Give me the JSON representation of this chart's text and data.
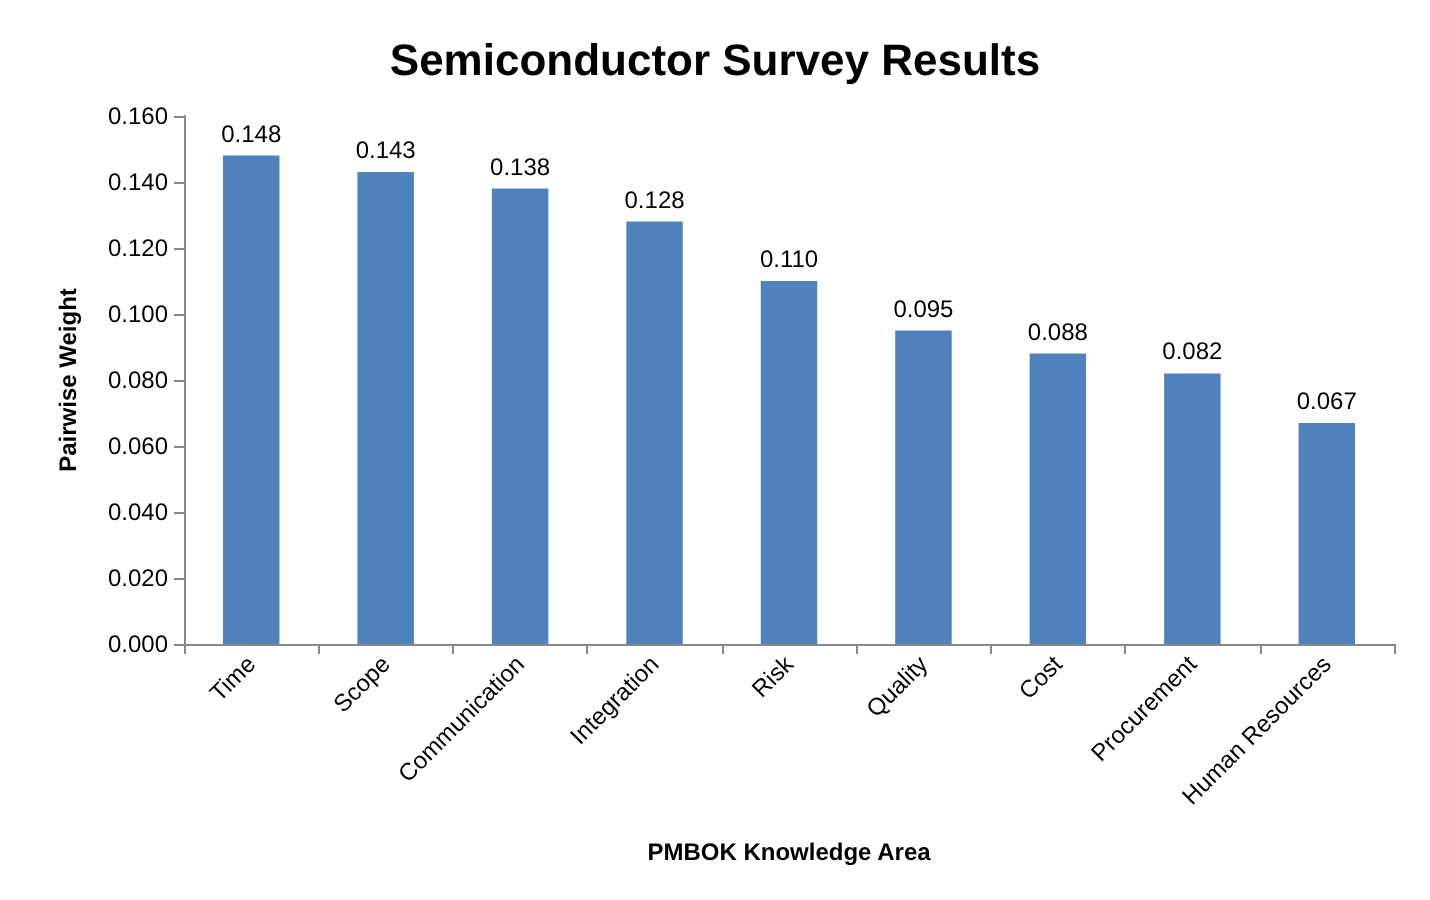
{
  "chart_data": {
    "type": "bar",
    "title": "Semiconductor Survey Results",
    "xlabel": "PMBOK Knowledge Area",
    "ylabel": "Pairwise Weight",
    "categories": [
      "Time",
      "Scope",
      "Communication",
      "Integration",
      "Risk",
      "Quality",
      "Cost",
      "Procurement",
      "Human Resources"
    ],
    "values": [
      0.148,
      0.143,
      0.138,
      0.128,
      0.11,
      0.095,
      0.088,
      0.082,
      0.067
    ],
    "color": "#4f81bd",
    "ylim": [
      0,
      0.16
    ],
    "yticks": [
      {
        "value": 0,
        "label": "0.000"
      },
      {
        "value": 0.02,
        "label": "0.020"
      },
      {
        "value": 0.04,
        "label": "0.040"
      },
      {
        "value": 0.06,
        "label": "0.060"
      },
      {
        "value": 0.08,
        "label": "0.080"
      },
      {
        "value": 0.1,
        "label": "0.100"
      },
      {
        "value": 0.12,
        "label": "0.120"
      },
      {
        "value": 0.14,
        "label": "0.140"
      },
      {
        "value": 0.16,
        "label": "0.160"
      }
    ],
    "value_labels": [
      "0.148",
      "0.143",
      "0.138",
      "0.128",
      "0.110",
      "0.095",
      "0.088",
      "0.082",
      "0.067"
    ],
    "grid": false
  }
}
